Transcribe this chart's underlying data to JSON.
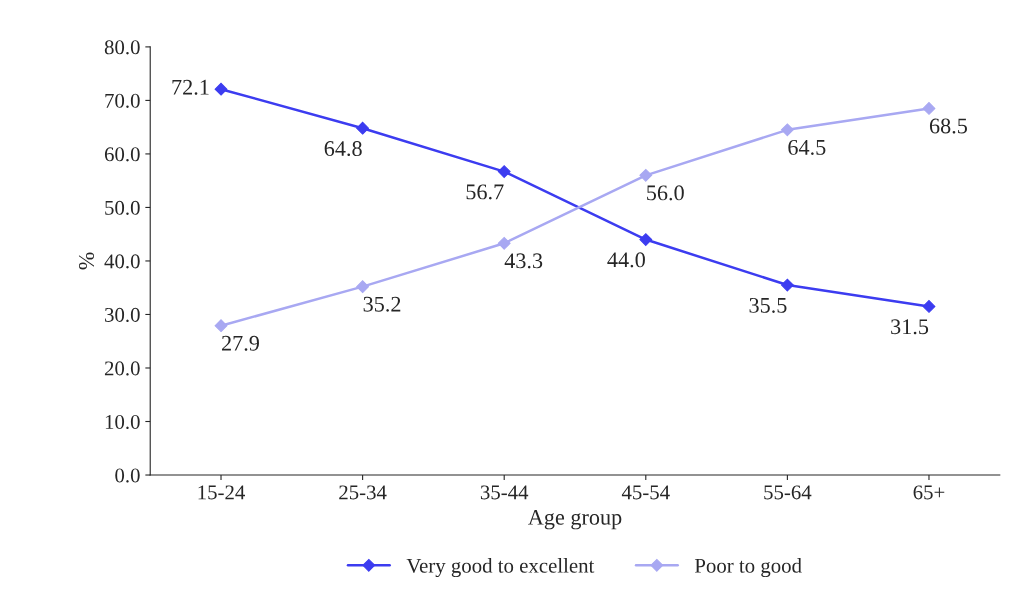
{
  "chart_data": {
    "type": "line",
    "xlabel": "Age group",
    "ylabel": "%",
    "categories": [
      "15-24",
      "25-34",
      "35-44",
      "45-54",
      "55-64",
      "65+"
    ],
    "series": [
      {
        "name": "Very good to excellent",
        "color": "#3c3cf0",
        "values": [
          72.1,
          64.8,
          56.7,
          44.0,
          35.5,
          31.5
        ],
        "value_labels": [
          "72.1",
          "64.8",
          "56.7",
          "44.0",
          "35.5",
          "31.5"
        ]
      },
      {
        "name": "Poor to good",
        "color": "#a8a8f2",
        "values": [
          27.9,
          35.2,
          43.3,
          56.0,
          64.5,
          68.5
        ],
        "value_labels": [
          "27.9",
          "35.2",
          "43.3",
          "56.0",
          "64.5",
          "68.5"
        ]
      }
    ],
    "ylim": [
      0,
      80
    ],
    "yticks": [
      {
        "value": 0,
        "label": "0.0"
      },
      {
        "value": 10,
        "label": "10.0"
      },
      {
        "value": 20,
        "label": "20.0"
      },
      {
        "value": 30,
        "label": "30.0"
      },
      {
        "value": 40,
        "label": "40.0"
      },
      {
        "value": 50,
        "label": "50.0"
      },
      {
        "value": 60,
        "label": "60.0"
      },
      {
        "value": 70,
        "label": "70.0"
      },
      {
        "value": 80,
        "label": "80.0"
      }
    ],
    "marker": "diamond",
    "line_style": "solid",
    "grid": false,
    "legend": "bottom"
  }
}
